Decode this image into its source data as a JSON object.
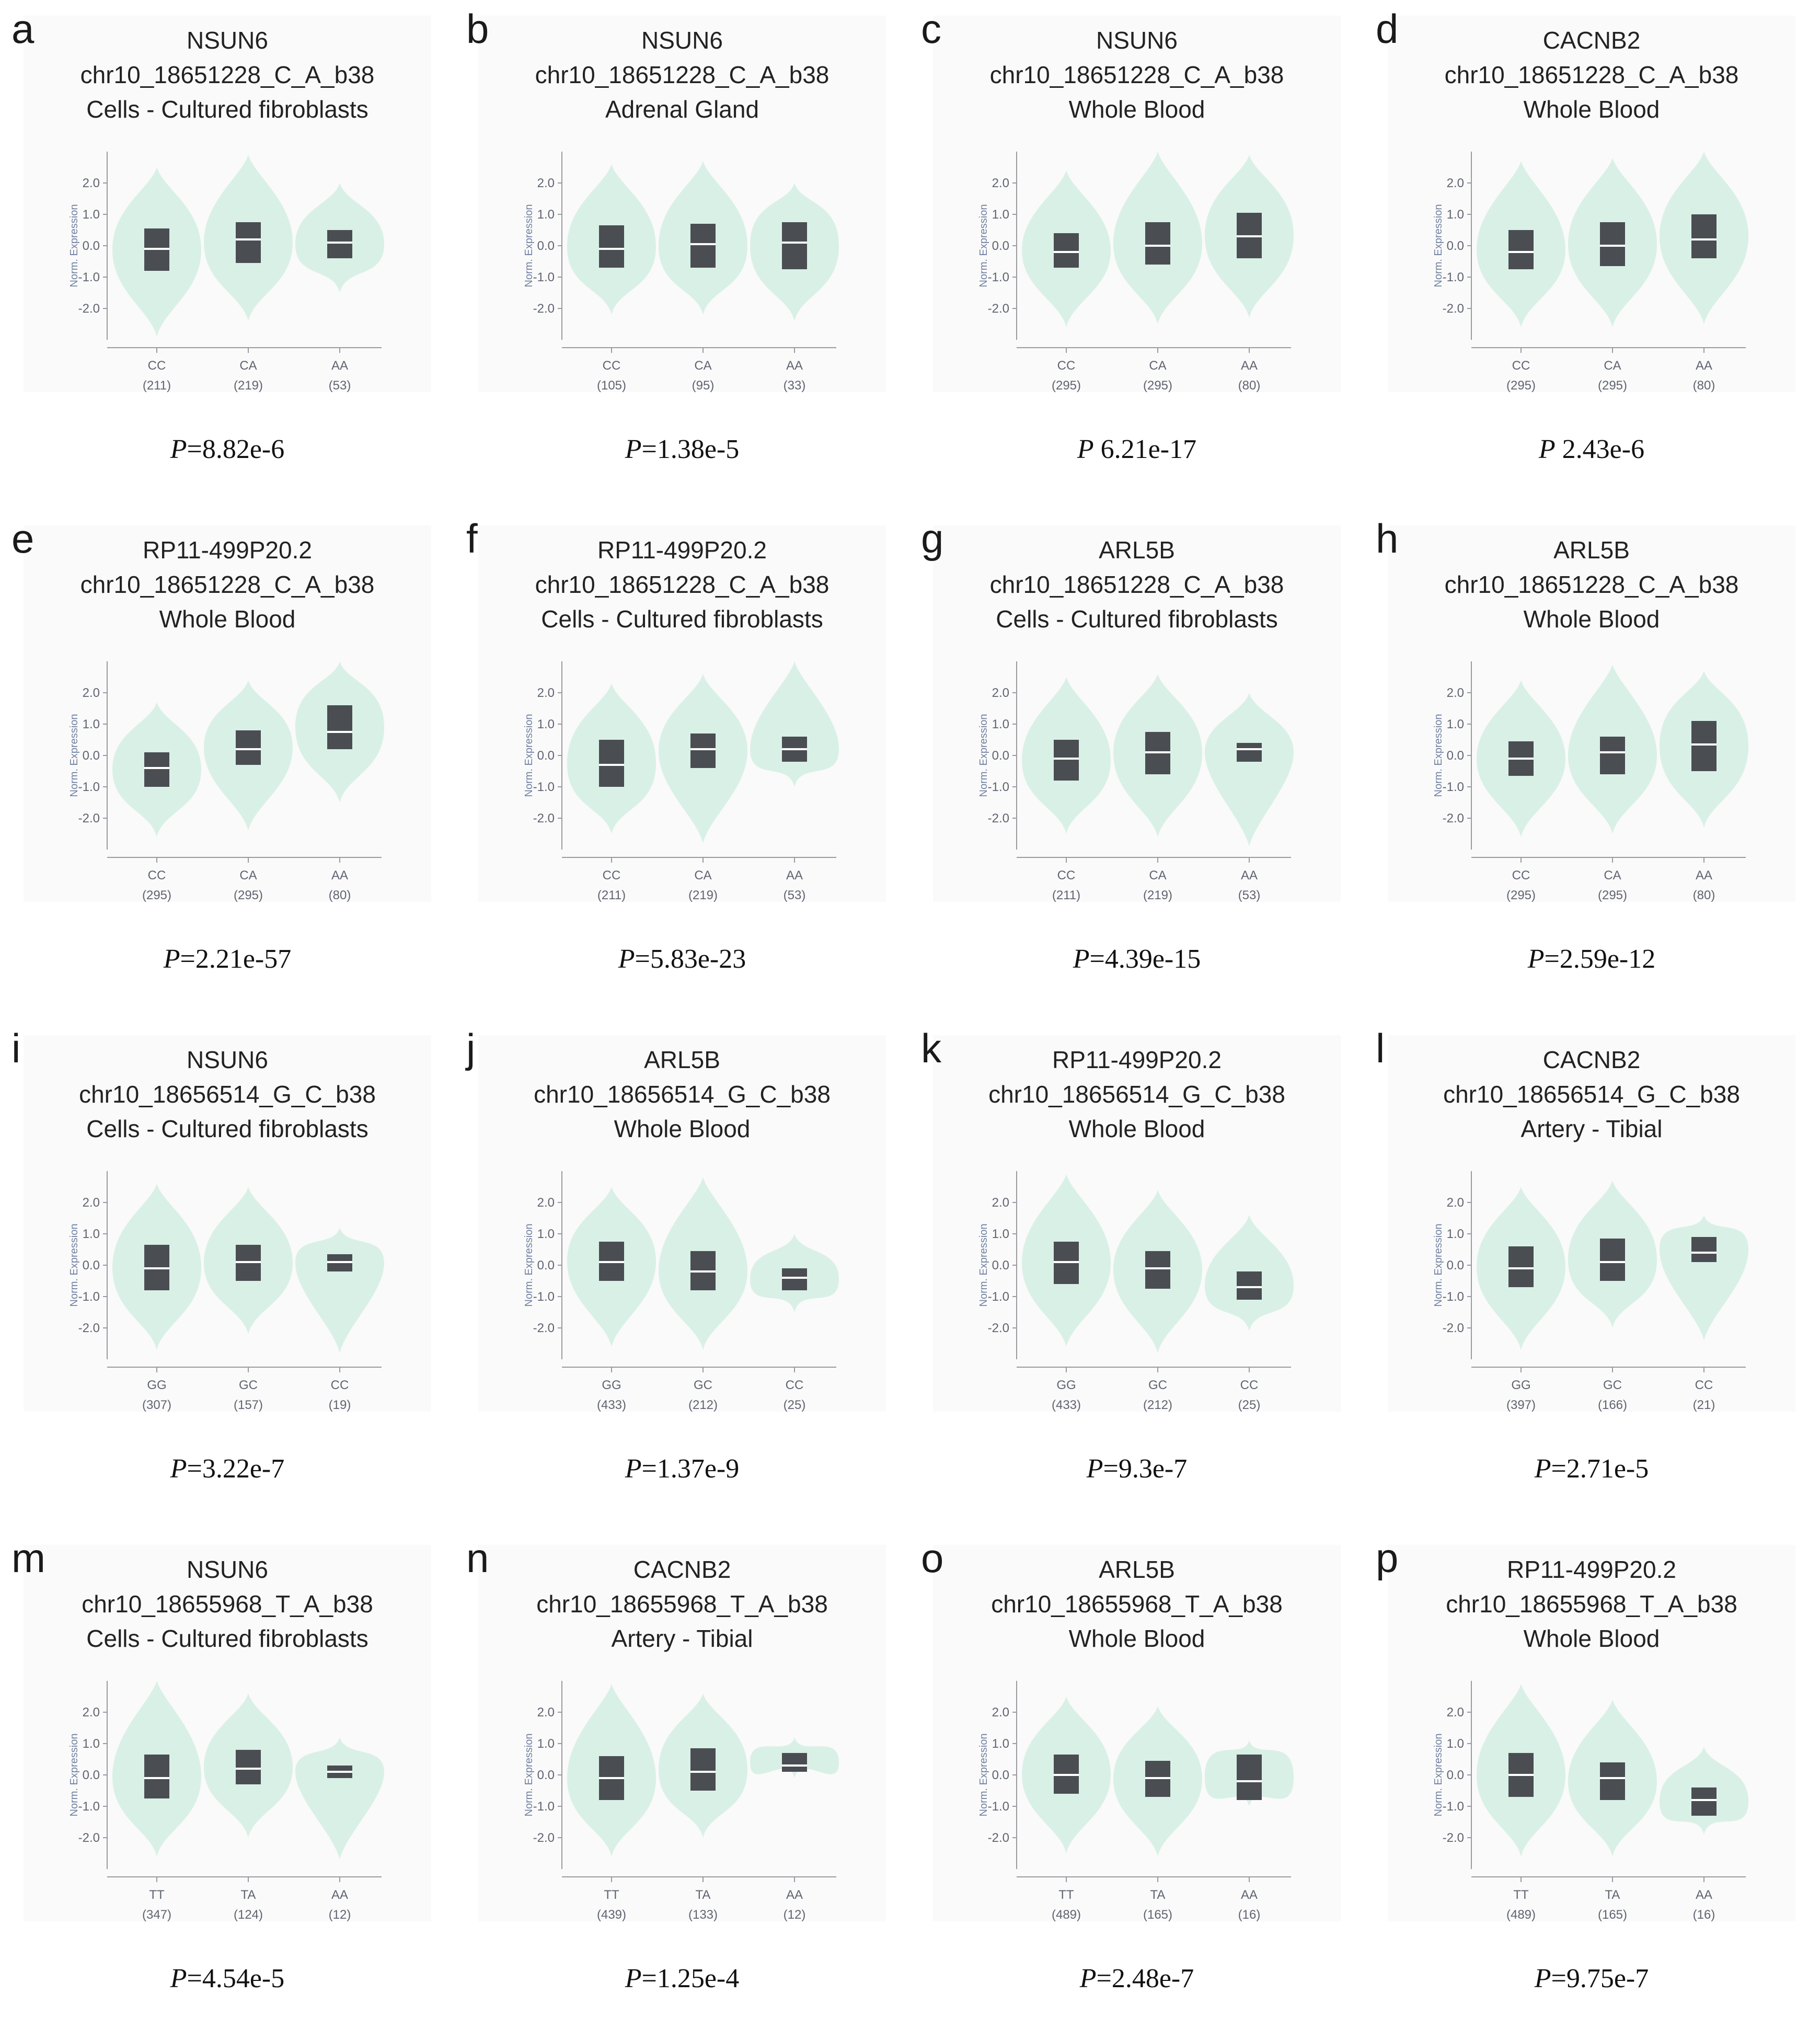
{
  "chart_data": [
    {
      "type": "violin",
      "letter": "a",
      "gene": "NSUN6",
      "variant": "chr10_18651228_C_A_b38",
      "tissue": "Cells - Cultured fibroblasts",
      "ylabel": "Norm. Expression",
      "yticks": [
        "2.0",
        "1.0",
        "0.0",
        "-1.0",
        "-2.0"
      ],
      "ylim": [
        -3,
        3
      ],
      "groups": [
        {
          "genotype": "CC",
          "n": "(211)",
          "median": -0.1,
          "q1": -0.8,
          "q3": 0.55,
          "min": -2.9,
          "max": 2.5
        },
        {
          "genotype": "CA",
          "n": "(219)",
          "median": 0.2,
          "q1": -0.55,
          "q3": 0.75,
          "min": -2.4,
          "max": 2.9
        },
        {
          "genotype": "AA",
          "n": "(53)",
          "median": 0.1,
          "q1": -0.4,
          "q3": 0.5,
          "min": -1.5,
          "max": 2.0
        }
      ],
      "p_label": "P",
      "p_value": "=8.82e-6"
    },
    {
      "type": "violin",
      "letter": "b",
      "gene": "NSUN6",
      "variant": "chr10_18651228_C_A_b38",
      "tissue": "Adrenal Gland",
      "ylabel": "Norm. Expression",
      "yticks": [
        "2.0",
        "1.0",
        "0.0",
        "-1.0",
        "-2.0"
      ],
      "ylim": [
        -3,
        3
      ],
      "groups": [
        {
          "genotype": "CC",
          "n": "(105)",
          "median": -0.1,
          "q1": -0.7,
          "q3": 0.65,
          "min": -2.2,
          "max": 2.6
        },
        {
          "genotype": "CA",
          "n": "(95)",
          "median": 0.05,
          "q1": -0.7,
          "q3": 0.7,
          "min": -2.2,
          "max": 2.7
        },
        {
          "genotype": "AA",
          "n": "(33)",
          "median": 0.1,
          "q1": -0.75,
          "q3": 0.75,
          "min": -2.4,
          "max": 2.0
        }
      ],
      "p_label": "P",
      "p_value": "=1.38e-5"
    },
    {
      "type": "violin",
      "letter": "c",
      "gene": "NSUN6",
      "variant": "chr10_18651228_C_A_b38",
      "tissue": "Whole Blood",
      "ylabel": "Norm. Expression",
      "yticks": [
        "2.0",
        "1.0",
        "0.0",
        "-1.0",
        "-2.0"
      ],
      "ylim": [
        -3,
        3
      ],
      "groups": [
        {
          "genotype": "CC",
          "n": "(295)",
          "median": -0.2,
          "q1": -0.7,
          "q3": 0.4,
          "min": -2.6,
          "max": 2.4
        },
        {
          "genotype": "CA",
          "n": "(295)",
          "median": 0.0,
          "q1": -0.6,
          "q3": 0.75,
          "min": -2.5,
          "max": 3.0
        },
        {
          "genotype": "AA",
          "n": "(80)",
          "median": 0.3,
          "q1": -0.4,
          "q3": 1.05,
          "min": -2.3,
          "max": 2.9
        }
      ],
      "p_label": "P",
      "p_value": " 6.21e-17"
    },
    {
      "type": "violin",
      "letter": "d",
      "gene": "CACNB2",
      "variant": "chr10_18651228_C_A_b38",
      "tissue": "Whole Blood",
      "ylabel": "Norm. Expression",
      "yticks": [
        "2.0",
        "1.0",
        "0.0",
        "-1.0",
        "-2.0"
      ],
      "ylim": [
        -3,
        3
      ],
      "groups": [
        {
          "genotype": "CC",
          "n": "(295)",
          "median": -0.2,
          "q1": -0.75,
          "q3": 0.5,
          "min": -2.6,
          "max": 2.7
        },
        {
          "genotype": "CA",
          "n": "(295)",
          "median": 0.0,
          "q1": -0.65,
          "q3": 0.75,
          "min": -2.6,
          "max": 2.8
        },
        {
          "genotype": "AA",
          "n": "(80)",
          "median": 0.2,
          "q1": -0.4,
          "q3": 1.0,
          "min": -2.5,
          "max": 3.0
        }
      ],
      "p_label": "P",
      "p_value": " 2.43e-6"
    },
    {
      "type": "violin",
      "letter": "e",
      "gene": "RP11-499P20.2",
      "variant": "chr10_18651228_C_A_b38",
      "tissue": "Whole Blood",
      "ylabel": "Norm. Expression",
      "yticks": [
        "2.0",
        "1.0",
        "0.0",
        "-1.0",
        "-2.0"
      ],
      "ylim": [
        -3,
        3
      ],
      "groups": [
        {
          "genotype": "CC",
          "n": "(295)",
          "median": -0.4,
          "q1": -1.0,
          "q3": 0.1,
          "min": -2.6,
          "max": 1.7
        },
        {
          "genotype": "CA",
          "n": "(295)",
          "median": 0.2,
          "q1": -0.3,
          "q3": 0.8,
          "min": -2.4,
          "max": 2.4
        },
        {
          "genotype": "AA",
          "n": "(80)",
          "median": 0.75,
          "q1": 0.2,
          "q3": 1.6,
          "min": -1.5,
          "max": 3.0
        }
      ],
      "p_label": "P",
      "p_value": "=2.21e-57"
    },
    {
      "type": "violin",
      "letter": "f",
      "gene": "RP11-499P20.2",
      "variant": "chr10_18651228_C_A_b38",
      "tissue": "Cells - Cultured fibroblasts",
      "ylabel": "Norm. Expression",
      "yticks": [
        "2.0",
        "1.0",
        "0.0",
        "-1.0",
        "-2.0"
      ],
      "ylim": [
        -3,
        3
      ],
      "groups": [
        {
          "genotype": "CC",
          "n": "(211)",
          "median": -0.3,
          "q1": -1.0,
          "q3": 0.5,
          "min": -2.5,
          "max": 2.3
        },
        {
          "genotype": "CA",
          "n": "(219)",
          "median": 0.2,
          "q1": -0.4,
          "q3": 0.7,
          "min": -2.8,
          "max": 2.6
        },
        {
          "genotype": "AA",
          "n": "(53)",
          "median": 0.2,
          "q1": -0.2,
          "q3": 0.6,
          "min": -1.0,
          "max": 3.0
        }
      ],
      "p_label": "P",
      "p_value": "=5.83e-23"
    },
    {
      "type": "violin",
      "letter": "g",
      "gene": "ARL5B",
      "variant": "chr10_18651228_C_A_b38",
      "tissue": "Cells - Cultured fibroblasts",
      "ylabel": "Norm. Expression",
      "yticks": [
        "2.0",
        "1.0",
        "0.0",
        "-1.0",
        "-2.0"
      ],
      "ylim": [
        -3,
        3
      ],
      "groups": [
        {
          "genotype": "CC",
          "n": "(211)",
          "median": -0.1,
          "q1": -0.8,
          "q3": 0.5,
          "min": -2.5,
          "max": 2.5
        },
        {
          "genotype": "CA",
          "n": "(219)",
          "median": 0.1,
          "q1": -0.6,
          "q3": 0.75,
          "min": -2.6,
          "max": 2.6
        },
        {
          "genotype": "AA",
          "n": "(53)",
          "median": 0.2,
          "q1": -0.2,
          "q3": 0.4,
          "min": -2.9,
          "max": 2.0
        }
      ],
      "p_label": "P",
      "p_value": "=4.39e-15"
    },
    {
      "type": "violin",
      "letter": "h",
      "gene": "ARL5B",
      "variant": "chr10_18651228_C_A_b38",
      "tissue": "Whole Blood",
      "ylabel": "Norm. Expression",
      "yticks": [
        "2.0",
        "1.0",
        "0.0",
        "-1.0",
        "-2.0"
      ],
      "ylim": [
        -3,
        3
      ],
      "groups": [
        {
          "genotype": "CC",
          "n": "(295)",
          "median": -0.1,
          "q1": -0.65,
          "q3": 0.45,
          "min": -2.6,
          "max": 2.4
        },
        {
          "genotype": "CA",
          "n": "(295)",
          "median": 0.1,
          "q1": -0.6,
          "q3": 0.6,
          "min": -2.5,
          "max": 2.9
        },
        {
          "genotype": "AA",
          "n": "(80)",
          "median": 0.35,
          "q1": -0.5,
          "q3": 1.1,
          "min": -2.3,
          "max": 2.7
        }
      ],
      "p_label": "P",
      "p_value": "=2.59e-12"
    },
    {
      "type": "violin",
      "letter": "i",
      "gene": "NSUN6",
      "variant": "chr10_18656514_G_C_b38",
      "tissue": "Cells - Cultured fibroblasts",
      "ylabel": "Norm. Expression",
      "yticks": [
        "2.0",
        "1.0",
        "0.0",
        "-1.0",
        "-2.0"
      ],
      "ylim": [
        -3,
        3
      ],
      "groups": [
        {
          "genotype": "GG",
          "n": "(307)",
          "median": -0.1,
          "q1": -0.8,
          "q3": 0.65,
          "min": -2.7,
          "max": 2.6
        },
        {
          "genotype": "GC",
          "n": "(157)",
          "median": 0.1,
          "q1": -0.5,
          "q3": 0.65,
          "min": -2.2,
          "max": 2.5
        },
        {
          "genotype": "CC",
          "n": "(19)",
          "median": 0.1,
          "q1": -0.2,
          "q3": 0.35,
          "min": -2.8,
          "max": 1.2
        }
      ],
      "p_label": "P",
      "p_value": "=3.22e-7"
    },
    {
      "type": "violin",
      "letter": "j",
      "gene": "ARL5B",
      "variant": "chr10_18656514_G_C_b38",
      "tissue": "Whole Blood",
      "ylabel": "Norm. Expression",
      "yticks": [
        "2.0",
        "1.0",
        "0.0",
        "-1.0",
        "-2.0"
      ],
      "ylim": [
        -3,
        3
      ],
      "groups": [
        {
          "genotype": "GG",
          "n": "(433)",
          "median": 0.1,
          "q1": -0.5,
          "q3": 0.75,
          "min": -2.6,
          "max": 2.5
        },
        {
          "genotype": "GC",
          "n": "(212)",
          "median": -0.2,
          "q1": -0.8,
          "q3": 0.45,
          "min": -2.7,
          "max": 2.8
        },
        {
          "genotype": "CC",
          "n": "(25)",
          "median": -0.4,
          "q1": -0.8,
          "q3": -0.1,
          "min": -1.5,
          "max": 1.0
        }
      ],
      "p_label": "P",
      "p_value": "=1.37e-9"
    },
    {
      "type": "violin",
      "letter": "k",
      "gene": "RP11-499P20.2",
      "variant": "chr10_18656514_G_C_b38",
      "tissue": "Whole Blood",
      "ylabel": "Norm. Expression",
      "yticks": [
        "2.0",
        "1.0",
        "0.0",
        "-1.0",
        "-2.0"
      ],
      "ylim": [
        -3,
        3
      ],
      "groups": [
        {
          "genotype": "GG",
          "n": "(433)",
          "median": 0.1,
          "q1": -0.6,
          "q3": 0.75,
          "min": -2.6,
          "max": 2.9
        },
        {
          "genotype": "GC",
          "n": "(212)",
          "median": -0.1,
          "q1": -0.75,
          "q3": 0.45,
          "min": -2.8,
          "max": 2.4
        },
        {
          "genotype": "CC",
          "n": "(25)",
          "median": -0.7,
          "q1": -1.1,
          "q3": -0.2,
          "min": -2.1,
          "max": 1.6
        }
      ],
      "p_label": "P",
      "p_value": "=9.3e-7"
    },
    {
      "type": "violin",
      "letter": "l",
      "gene": "CACNB2",
      "variant": "chr10_18656514_G_C_b38",
      "tissue": "Artery - Tibial",
      "ylabel": "Norm. Expression",
      "yticks": [
        "2.0",
        "1.0",
        "0.0",
        "-1.0",
        "-2.0"
      ],
      "ylim": [
        -3,
        3
      ],
      "groups": [
        {
          "genotype": "GG",
          "n": "(397)",
          "median": -0.1,
          "q1": -0.7,
          "q3": 0.6,
          "min": -2.7,
          "max": 2.5
        },
        {
          "genotype": "GC",
          "n": "(166)",
          "median": 0.1,
          "q1": -0.5,
          "q3": 0.85,
          "min": -2.0,
          "max": 2.7
        },
        {
          "genotype": "CC",
          "n": "(21)",
          "median": 0.4,
          "q1": 0.1,
          "q3": 0.9,
          "min": -2.4,
          "max": 1.6
        }
      ],
      "p_label": "P",
      "p_value": "=2.71e-5"
    },
    {
      "type": "violin",
      "letter": "m",
      "gene": "NSUN6",
      "variant": "chr10_18655968_T_A_b38",
      "tissue": "Cells - Cultured fibroblasts",
      "ylabel": "Norm. Expression",
      "yticks": [
        "2.0",
        "1.0",
        "0.0",
        "-1.0",
        "-2.0"
      ],
      "ylim": [
        -3,
        3
      ],
      "groups": [
        {
          "genotype": "TT",
          "n": "(347)",
          "median": -0.1,
          "q1": -0.75,
          "q3": 0.65,
          "min": -2.6,
          "max": 3.0
        },
        {
          "genotype": "TA",
          "n": "(124)",
          "median": 0.2,
          "q1": -0.3,
          "q3": 0.8,
          "min": -2.0,
          "max": 2.6
        },
        {
          "genotype": "AA",
          "n": "(12)",
          "median": 0.1,
          "q1": -0.1,
          "q3": 0.3,
          "min": -2.7,
          "max": 1.2
        }
      ],
      "p_label": "P",
      "p_value": "=4.54e-5"
    },
    {
      "type": "violin",
      "letter": "n",
      "gene": "CACNB2",
      "variant": "chr10_18655968_T_A_b38",
      "tissue": "Artery - Tibial",
      "ylabel": "Norm. Expression",
      "yticks": [
        "2.0",
        "1.0",
        "0.0",
        "-1.0",
        "-2.0"
      ],
      "ylim": [
        -3,
        3
      ],
      "groups": [
        {
          "genotype": "TT",
          "n": "(439)",
          "median": -0.1,
          "q1": -0.8,
          "q3": 0.6,
          "min": -2.6,
          "max": 2.9
        },
        {
          "genotype": "TA",
          "n": "(133)",
          "median": 0.1,
          "q1": -0.5,
          "q3": 0.85,
          "min": -2.0,
          "max": 2.6
        },
        {
          "genotype": "AA",
          "n": "(12)",
          "median": 0.3,
          "q1": 0.1,
          "q3": 0.7,
          "min": -0.1,
          "max": 1.2
        }
      ],
      "p_label": "P",
      "p_value": "=1.25e-4"
    },
    {
      "type": "violin",
      "letter": "o",
      "gene": "ARL5B",
      "variant": "chr10_18655968_T_A_b38",
      "tissue": "Whole Blood",
      "ylabel": "Norm. Expression",
      "yticks": [
        "2.0",
        "1.0",
        "0.0",
        "-1.0",
        "-2.0"
      ],
      "ylim": [
        -3,
        3
      ],
      "groups": [
        {
          "genotype": "TT",
          "n": "(489)",
          "median": 0.0,
          "q1": -0.6,
          "q3": 0.65,
          "min": -2.5,
          "max": 2.5
        },
        {
          "genotype": "TA",
          "n": "(165)",
          "median": -0.1,
          "q1": -0.7,
          "q3": 0.45,
          "min": -2.6,
          "max": 2.2
        },
        {
          "genotype": "AA",
          "n": "(16)",
          "median": -0.2,
          "q1": -0.8,
          "q3": 0.65,
          "min": -1.0,
          "max": 1.1
        }
      ],
      "p_label": "P",
      "p_value": "=2.48e-7"
    },
    {
      "type": "violin",
      "letter": "p",
      "gene": "RP11-499P20.2",
      "variant": "chr10_18655968_T_A_b38",
      "tissue": "Whole Blood",
      "ylabel": "Norm. Expression",
      "yticks": [
        "2.0",
        "1.0",
        "0.0",
        "-1.0",
        "-2.0"
      ],
      "ylim": [
        -3,
        3
      ],
      "groups": [
        {
          "genotype": "TT",
          "n": "(489)",
          "median": 0.0,
          "q1": -0.7,
          "q3": 0.7,
          "min": -2.6,
          "max": 2.9
        },
        {
          "genotype": "TA",
          "n": "(165)",
          "median": -0.1,
          "q1": -0.8,
          "q3": 0.4,
          "min": -2.6,
          "max": 2.4
        },
        {
          "genotype": "AA",
          "n": "(16)",
          "median": -0.8,
          "q1": -1.3,
          "q3": -0.4,
          "min": -1.9,
          "max": 0.9
        }
      ],
      "p_label": "P",
      "p_value": "=9.75e-7"
    }
  ],
  "colors": {
    "violin": "#d9f0e6",
    "box": "#4a4d52",
    "median": "#ffffff",
    "axis": "#9a9aa0",
    "tick_text": "#606470",
    "panel_bg": "#fafafa"
  }
}
